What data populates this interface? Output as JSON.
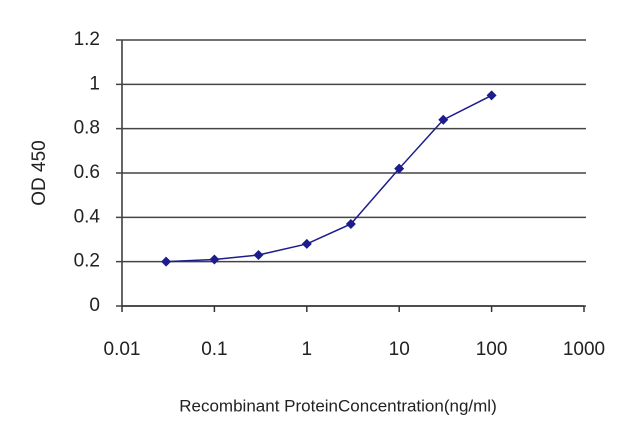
{
  "chart_data": {
    "type": "line",
    "x_label": "Recombinant ProteinConcentration(ng/ml)",
    "y_label": "OD 450",
    "x": [
      0.03,
      0.1,
      0.3,
      1,
      3,
      10,
      30,
      100
    ],
    "series": [
      {
        "name": "OD",
        "color": "#1c1c8c",
        "values": [
          0.2,
          0.21,
          0.23,
          0.28,
          0.37,
          0.62,
          0.84,
          0.95
        ]
      }
    ],
    "xscale": "log",
    "xlim": [
      0.01,
      1000
    ],
    "xticks": [
      0.01,
      0.1,
      1,
      10,
      100,
      1000
    ],
    "ylim": [
      0,
      1.2
    ],
    "yticks": [
      0,
      0.2,
      0.4,
      0.6,
      0.8,
      1,
      1.2
    ],
    "grid": true
  }
}
